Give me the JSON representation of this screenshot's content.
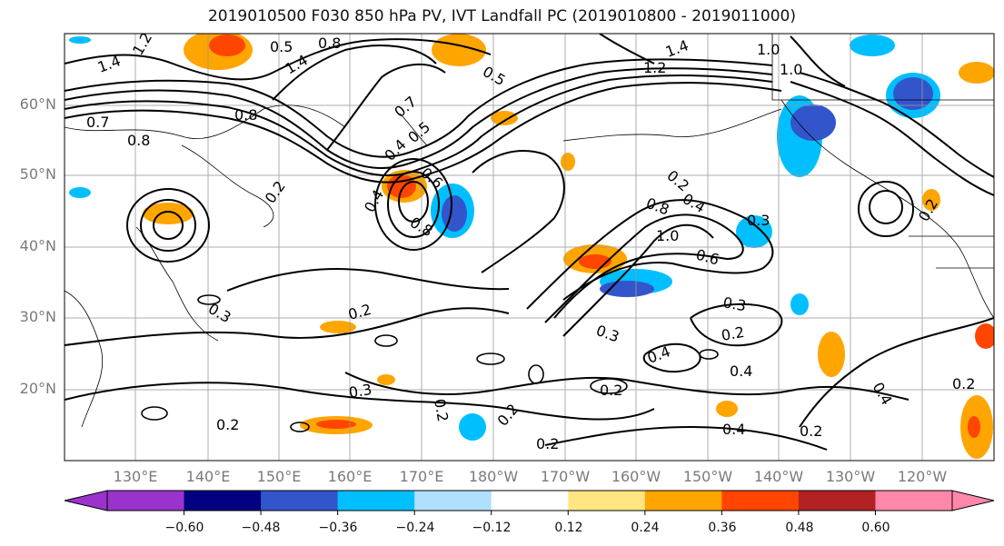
{
  "title": "2019010500 F030 850 hPa PV, IVT Landfall PC (2019010800 - 2019011000)",
  "lat_labels": [
    "60°N",
    "50°N",
    "40°N",
    "30°N",
    "20°N"
  ],
  "lon_labels": [
    "130°E",
    "140°E",
    "150°E",
    "160°E",
    "170°E",
    "180°W",
    "170°W",
    "160°W",
    "150°W",
    "140°W",
    "130°W",
    "120°W"
  ],
  "colorbar": {
    "colors": [
      "#9933cc",
      "#000080",
      "#3355cc",
      "#00bfff",
      "#b0e0ff",
      "#ffffff",
      "#ffe680",
      "#ffa500",
      "#ff4500",
      "#b22222",
      "#ff88aa"
    ],
    "ticks": [
      "−0.60",
      "−0.48",
      "−0.36",
      "−0.24",
      "−0.12",
      "0.12",
      "0.24",
      "0.36",
      "0.48",
      "0.60"
    ]
  },
  "contour_labels": [
    "1.4",
    "1.2",
    "0.5",
    "1.4",
    "0.8",
    "0.5",
    "1.2",
    "1.4",
    "1.0",
    "1.0",
    "0.8",
    "0.7",
    "0.8",
    "0.7",
    "0.4",
    "0.5",
    "0.2",
    "0.4",
    "0.8",
    "0.6",
    "0.2",
    "0.8",
    "0.4",
    "1.0",
    "0.6",
    "0.3",
    "0.3",
    "0.3",
    "0.2",
    "0.3",
    "0.2",
    "0.4",
    "0.4",
    "0.2",
    "0.2",
    "0.2",
    "0.3",
    "0.2",
    "0.4",
    "0.2",
    "0.4",
    "0.2",
    "0.2",
    "0.2"
  ]
}
